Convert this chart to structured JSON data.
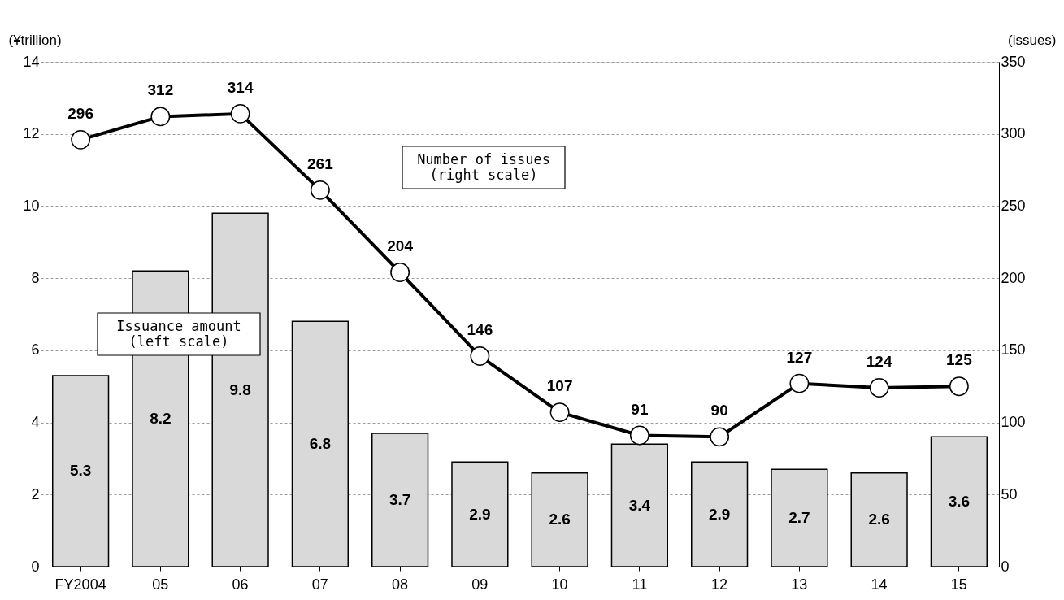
{
  "chart_data": {
    "type": "bar",
    "ylabel": "(¥trillion)",
    "y2label": "(issues)",
    "categories": [
      "FY2004",
      "05",
      "06",
      "07",
      "08",
      "09",
      "10",
      "11",
      "12",
      "13",
      "14",
      "15"
    ],
    "series": [
      {
        "color": "#d9d9d9",
        "values": [
          5.3,
          8.2,
          9.8,
          6.8,
          3.7,
          2.9,
          2.6,
          3.4,
          2.9,
          2.7,
          2.6,
          3.6
        ]
      },
      {
        "type": "line",
        "axis": "y2",
        "color": "#000000",
        "marker": "circle",
        "values": [
          296,
          312,
          314,
          261,
          204,
          146,
          107,
          91,
          90,
          127,
          124,
          125
        ]
      }
    ],
    "ylim": [
      0,
      14
    ],
    "yticks": [
      0,
      2,
      4,
      6,
      8,
      10,
      12,
      14
    ],
    "y2lim": [
      0,
      350
    ],
    "y2ticks": [
      0,
      50,
      100,
      150,
      200,
      250,
      300,
      350
    ],
    "data_labels": true,
    "grid": "y",
    "annotations": [
      "Number of issues\n(right scale)",
      "Issuance amount\n(left scale)"
    ]
  }
}
